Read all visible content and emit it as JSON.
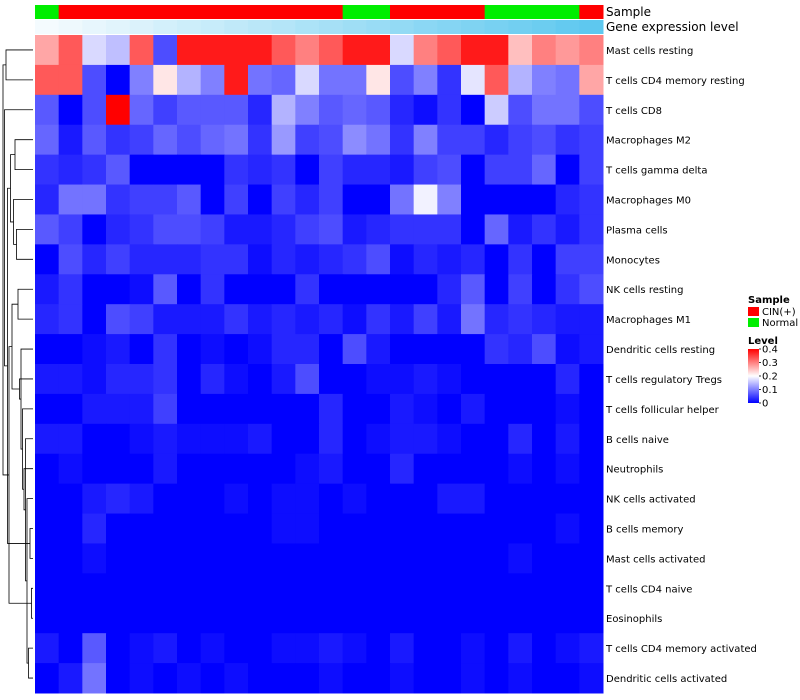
{
  "chart_data": {
    "type": "heatmap",
    "title": "",
    "annotation_tracks": [
      "Sample",
      "Gene expression level"
    ],
    "sample_groups": [
      "Normal",
      "CIN(+)",
      "CIN(+)",
      "CIN(+)",
      "CIN(+)",
      "CIN(+)",
      "CIN(+)",
      "CIN(+)",
      "CIN(+)",
      "CIN(+)",
      "CIN(+)",
      "CIN(+)",
      "CIN(+)",
      "Normal",
      "Normal",
      "CIN(+)",
      "CIN(+)",
      "CIN(+)",
      "CIN(+)",
      "Normal",
      "Normal",
      "Normal",
      "Normal",
      "CIN(+)"
    ],
    "gene_expression_level": [
      0.0,
      0.04,
      0.09,
      0.13,
      0.17,
      0.22,
      0.26,
      0.3,
      0.35,
      0.39,
      0.43,
      0.48,
      0.52,
      0.57,
      0.61,
      0.65,
      0.7,
      0.74,
      0.78,
      0.83,
      0.87,
      0.91,
      0.96,
      1.0
    ],
    "rows": [
      "Mast cells resting",
      "T cells CD4 memory resting",
      "T cells CD8",
      "Macrophages M2",
      "T cells gamma delta",
      "Macrophages M0",
      "Plasma cells",
      "Monocytes",
      "NK cells resting",
      "Macrophages M1",
      "Dendritic cells resting",
      "T cells regulatory  Tregs",
      "T cells follicular helper",
      "B cells naive",
      "Neutrophils",
      "NK cells activated",
      "B cells memory",
      "Mast cells activated",
      "T cells CD4 naive",
      "Eosinophils",
      "T cells CD4 memory activated",
      "Dendritic cells activated"
    ],
    "values": [
      [
        0.27,
        0.33,
        0.17,
        0.15,
        0.33,
        0.06,
        0.38,
        0.38,
        0.38,
        0.38,
        0.33,
        0.3,
        0.33,
        0.38,
        0.38,
        0.17,
        0.3,
        0.33,
        0.38,
        0.38,
        0.25,
        0.3,
        0.28,
        0.3
      ],
      [
        0.33,
        0.33,
        0.06,
        0.0,
        0.1,
        0.22,
        0.14,
        0.1,
        0.38,
        0.09,
        0.08,
        0.17,
        0.09,
        0.09,
        0.22,
        0.06,
        0.1,
        0.04,
        0.18,
        0.33,
        0.14,
        0.1,
        0.09,
        0.27
      ],
      [
        0.07,
        0.0,
        0.06,
        0.4,
        0.08,
        0.05,
        0.07,
        0.07,
        0.07,
        0.03,
        0.14,
        0.1,
        0.07,
        0.08,
        0.07,
        0.03,
        0.01,
        0.04,
        0.0,
        0.16,
        0.06,
        0.09,
        0.09,
        0.06
      ],
      [
        0.08,
        0.02,
        0.07,
        0.04,
        0.05,
        0.08,
        0.06,
        0.08,
        0.09,
        0.04,
        0.12,
        0.05,
        0.06,
        0.11,
        0.09,
        0.04,
        0.1,
        0.05,
        0.05,
        0.03,
        0.05,
        0.06,
        0.04,
        0.05
      ],
      [
        0.04,
        0.03,
        0.04,
        0.07,
        0.0,
        0.0,
        0.0,
        0.0,
        0.04,
        0.03,
        0.04,
        0.0,
        0.05,
        0.03,
        0.03,
        0.02,
        0.05,
        0.06,
        0.0,
        0.05,
        0.05,
        0.08,
        0.0,
        0.05
      ],
      [
        0.03,
        0.09,
        0.09,
        0.04,
        0.05,
        0.05,
        0.07,
        0.0,
        0.05,
        0.0,
        0.05,
        0.03,
        0.05,
        0.0,
        0.0,
        0.09,
        0.19,
        0.1,
        0.0,
        0.0,
        0.0,
        0.0,
        0.03,
        0.04
      ],
      [
        0.07,
        0.05,
        0.0,
        0.03,
        0.04,
        0.06,
        0.06,
        0.05,
        0.02,
        0.02,
        0.03,
        0.05,
        0.06,
        0.02,
        0.03,
        0.04,
        0.04,
        0.04,
        0.0,
        0.08,
        0.02,
        0.04,
        0.02,
        0.04
      ],
      [
        0.0,
        0.06,
        0.03,
        0.05,
        0.03,
        0.03,
        0.03,
        0.04,
        0.04,
        0.01,
        0.03,
        0.02,
        0.03,
        0.04,
        0.06,
        0.01,
        0.03,
        0.02,
        0.03,
        0.0,
        0.04,
        0.0,
        0.05,
        0.05
      ],
      [
        0.02,
        0.04,
        0.0,
        0.0,
        0.01,
        0.07,
        0.0,
        0.04,
        0.0,
        0.0,
        0.0,
        0.04,
        0.0,
        0.0,
        0.0,
        0.0,
        0.0,
        0.03,
        0.07,
        0.0,
        0.05,
        0.0,
        0.04,
        0.06
      ],
      [
        0.03,
        0.04,
        0.0,
        0.06,
        0.05,
        0.02,
        0.02,
        0.02,
        0.04,
        0.02,
        0.03,
        0.02,
        0.03,
        0.01,
        0.04,
        0.02,
        0.05,
        0.02,
        0.09,
        0.03,
        0.04,
        0.03,
        0.02,
        0.02
      ],
      [
        0.0,
        0.0,
        0.01,
        0.02,
        0.0,
        0.04,
        0.0,
        0.01,
        0.0,
        0.01,
        0.03,
        0.03,
        0.0,
        0.06,
        0.02,
        0.0,
        0.0,
        0.0,
        0.0,
        0.04,
        0.03,
        0.06,
        0.01,
        0.02
      ],
      [
        0.02,
        0.02,
        0.01,
        0.03,
        0.03,
        0.04,
        0.0,
        0.03,
        0.01,
        0.0,
        0.02,
        0.06,
        0.0,
        0.0,
        0.01,
        0.01,
        0.02,
        0.01,
        0.0,
        0.0,
        0.0,
        0.0,
        0.03,
        0.0
      ],
      [
        0.0,
        0.0,
        0.02,
        0.02,
        0.02,
        0.05,
        0.0,
        0.0,
        0.0,
        0.0,
        0.0,
        0.0,
        0.03,
        0.0,
        0.0,
        0.02,
        0.01,
        0.0,
        0.02,
        0.0,
        0.0,
        0.0,
        0.01,
        0.0
      ],
      [
        0.02,
        0.02,
        0.0,
        0.0,
        0.01,
        0.02,
        0.01,
        0.01,
        0.01,
        0.02,
        0.0,
        0.0,
        0.03,
        0.0,
        0.01,
        0.02,
        0.02,
        0.01,
        0.0,
        0.0,
        0.03,
        0.0,
        0.02,
        0.0
      ],
      [
        0.0,
        0.01,
        0.0,
        0.0,
        0.0,
        0.02,
        0.0,
        0.0,
        0.0,
        0.0,
        0.0,
        0.01,
        0.02,
        0.0,
        0.0,
        0.03,
        0.0,
        0.0,
        0.0,
        0.0,
        0.01,
        0.0,
        0.01,
        0.0
      ],
      [
        0.0,
        0.0,
        0.02,
        0.03,
        0.02,
        0.0,
        0.0,
        0.0,
        0.01,
        0.0,
        0.01,
        0.01,
        0.0,
        0.01,
        0.0,
        0.0,
        0.0,
        0.02,
        0.02,
        0.0,
        0.0,
        0.0,
        0.0,
        0.0
      ],
      [
        0.0,
        0.0,
        0.03,
        0.0,
        0.0,
        0.0,
        0.0,
        0.0,
        0.0,
        0.0,
        0.01,
        0.01,
        0.0,
        0.0,
        0.0,
        0.0,
        0.0,
        0.0,
        0.0,
        0.0,
        0.0,
        0.0,
        0.01,
        0.0
      ],
      [
        0.0,
        0.0,
        0.01,
        0.0,
        0.0,
        0.0,
        0.0,
        0.0,
        0.0,
        0.0,
        0.0,
        0.0,
        0.0,
        0.0,
        0.0,
        0.0,
        0.0,
        0.0,
        0.0,
        0.0,
        0.01,
        0.0,
        0.0,
        0.0
      ],
      [
        0.0,
        0.0,
        0.0,
        0.0,
        0.0,
        0.0,
        0.0,
        0.0,
        0.0,
        0.0,
        0.0,
        0.0,
        0.0,
        0.0,
        0.0,
        0.0,
        0.0,
        0.0,
        0.0,
        0.0,
        0.0,
        0.0,
        0.0,
        0.0
      ],
      [
        0.0,
        0.0,
        0.0,
        0.0,
        0.0,
        0.0,
        0.0,
        0.0,
        0.0,
        0.0,
        0.0,
        0.0,
        0.0,
        0.0,
        0.0,
        0.0,
        0.0,
        0.0,
        0.0,
        0.0,
        0.0,
        0.0,
        0.0,
        0.0
      ],
      [
        0.02,
        0.0,
        0.07,
        0.0,
        0.01,
        0.02,
        0.0,
        0.01,
        0.0,
        0.0,
        0.01,
        0.01,
        0.02,
        0.01,
        0.0,
        0.02,
        0.0,
        0.0,
        0.01,
        0.0,
        0.02,
        0.0,
        0.01,
        0.02
      ],
      [
        0.0,
        0.02,
        0.09,
        0.0,
        0.01,
        0.0,
        0.01,
        0.0,
        0.01,
        0.0,
        0.0,
        0.0,
        0.01,
        0.0,
        0.0,
        0.01,
        0.0,
        0.0,
        0.01,
        0.0,
        0.01,
        0.0,
        0.0,
        0.01
      ]
    ],
    "legends": {
      "sample": {
        "title": "Sample",
        "entries": [
          {
            "label": "CIN(+)",
            "color": "#ff0000"
          },
          {
            "label": "Normal",
            "color": "#00ee00"
          }
        ]
      },
      "level": {
        "title": "Level",
        "ticks": [
          "0.4",
          "0.3",
          "0.2",
          "0.1",
          "0"
        ],
        "tick_values": [
          0.4,
          0.3,
          0.2,
          0.1,
          0
        ],
        "range": [
          0,
          0.4
        ]
      }
    },
    "colors": {
      "low": "#0000ff",
      "mid": "#ffffff",
      "high": "#ff0000",
      "midpoint": 0.2,
      "expr_low": "#f4fbfe",
      "expr_high": "#5ec8ef"
    },
    "row_dendrogram": [
      [
        18,
        19
      ],
      [
        16,
        17
      ],
      [
        20,
        21
      ],
      [
        24,
        15
      ],
      [
        25,
        13
      ],
      [
        26,
        14
      ],
      [
        27,
        12
      ],
      [
        28,
        10
      ],
      [
        29,
        11
      ],
      [
        8,
        9
      ],
      [
        6,
        7
      ],
      [
        3,
        4
      ],
      [
        32,
        5
      ],
      [
        31,
        30
      ],
      [
        34,
        33
      ],
      [
        35,
        22
      ],
      [
        36,
        23
      ],
      [
        0,
        1
      ],
      [
        38,
        2
      ],
      [
        39,
        37
      ]
    ]
  }
}
